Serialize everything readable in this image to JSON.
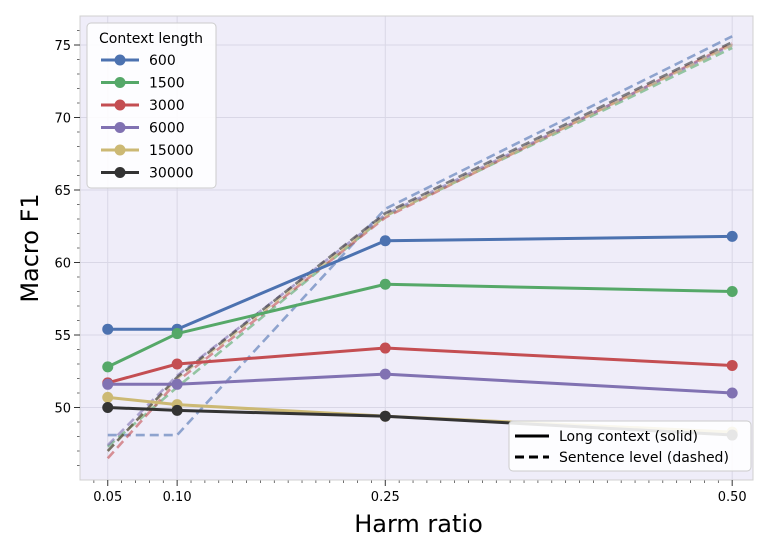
{
  "chart_data": {
    "type": "line",
    "xlabel": "Harm ratio",
    "ylabel": "Macro F1",
    "xlim": [
      0.03,
      0.515
    ],
    "ylim": [
      45,
      77
    ],
    "x_ticks": [
      0.05,
      0.1,
      0.25,
      0.5
    ],
    "x_tick_labels": [
      "0.05",
      "0.10",
      "0.25",
      "0.50"
    ],
    "y_ticks": [
      50,
      55,
      60,
      65,
      70,
      75
    ],
    "y_tick_labels": [
      "50",
      "55",
      "60",
      "65",
      "70",
      "75"
    ],
    "grid": true,
    "background": "#efedf9",
    "legend": {
      "title": "Context length",
      "placement": "top-left",
      "entries": [
        "600",
        "1500",
        "3000",
        "6000",
        "15000",
        "30000"
      ]
    },
    "style_legend": {
      "placement": "bottom-right",
      "entries": [
        {
          "label": "Long context (solid)",
          "style": "solid"
        },
        {
          "label": "Sentence level (dashed)",
          "style": "dashed"
        }
      ]
    },
    "series": [
      {
        "name": "600",
        "color": "#4c72b0",
        "x": [
          0.05,
          0.1,
          0.25,
          0.5
        ],
        "solid": [
          55.4,
          55.4,
          61.5,
          61.8
        ],
        "dashed": [
          48.1,
          48.1,
          63.7,
          75.6
        ]
      },
      {
        "name": "1500",
        "color": "#55a868",
        "x": [
          0.05,
          0.1,
          0.25,
          0.5
        ],
        "solid": [
          52.8,
          55.1,
          58.5,
          58.0
        ],
        "dashed": [
          47.3,
          51.4,
          63.2,
          74.8
        ]
      },
      {
        "name": "3000",
        "color": "#c44e52",
        "x": [
          0.05,
          0.1,
          0.25,
          0.5
        ],
        "solid": [
          51.7,
          53.0,
          54.1,
          52.9
        ],
        "dashed": [
          46.5,
          51.8,
          63.1,
          75.1
        ]
      },
      {
        "name": "6000",
        "color": "#8172b2",
        "x": [
          0.05,
          0.1,
          0.25,
          0.5
        ],
        "solid": [
          51.6,
          51.6,
          52.3,
          51.0
        ],
        "dashed": [
          47.4,
          52.2,
          63.3,
          75.0
        ]
      },
      {
        "name": "15000",
        "color": "#ccb974",
        "x": [
          0.05,
          0.1,
          0.25,
          0.5
        ],
        "solid": [
          50.7,
          50.2,
          49.4,
          48.3
        ],
        "dashed": [
          47.0,
          52.0,
          63.2,
          75.0
        ]
      },
      {
        "name": "30000",
        "color": "#333333",
        "x": [
          0.05,
          0.1,
          0.25,
          0.5
        ],
        "solid": [
          50.0,
          49.8,
          49.4,
          48.1
        ],
        "dashed": [
          47.0,
          52.1,
          63.4,
          75.2
        ]
      }
    ]
  }
}
